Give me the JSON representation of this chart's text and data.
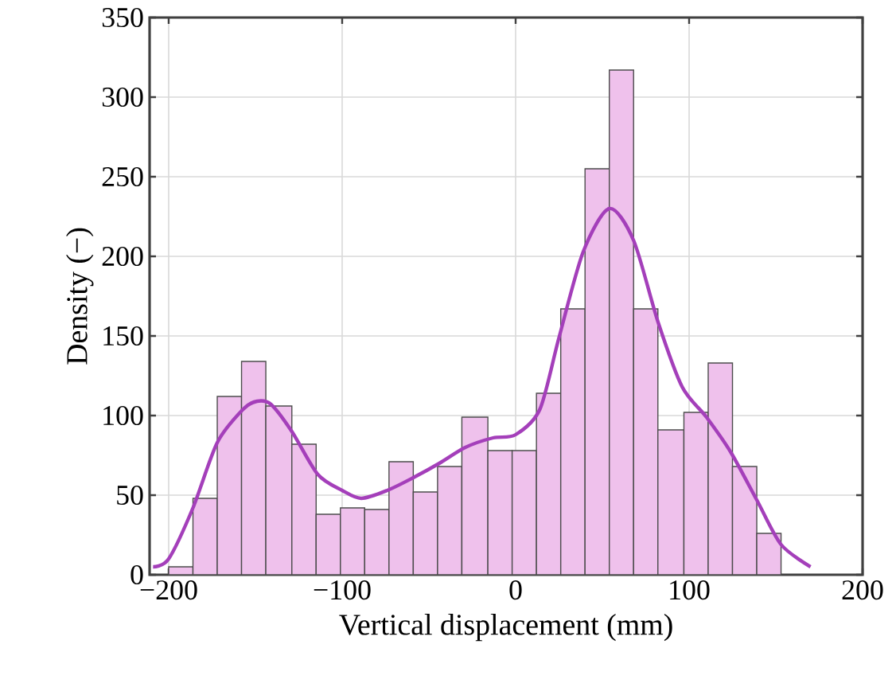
{
  "chart_data": {
    "type": "histogram",
    "xlabel": "Vertical displacement (mm)",
    "ylabel": "Density (−)",
    "bins": [
      -200,
      -186,
      -172,
      -158,
      -144,
      -129,
      -115,
      -101,
      -87,
      -73,
      -59,
      -45,
      -31,
      -16,
      -2,
      12,
      26,
      40,
      54,
      68,
      82,
      97,
      111,
      125,
      139,
      153
    ],
    "series": [
      {
        "type": "histogram",
        "color": "#efc1ec",
        "values": [
          5,
          48,
          112,
          134,
          106,
          82,
          38,
          42,
          41,
          71,
          52,
          68,
          99,
          78,
          78,
          114,
          167,
          255,
          317,
          167,
          91,
          102,
          133,
          68,
          26
        ]
      },
      {
        "type": "line",
        "color": "#a43fba",
        "x": [
          -209,
          -200,
          -186,
          -172,
          -157,
          -149,
          -141,
          -129,
          -114,
          -100,
          -89,
          -74,
          -59,
          -44,
          -29,
          -13,
          0,
          14,
          25,
          39,
          54,
          68,
          82,
          96,
          110,
          124,
          139,
          153,
          170
        ],
        "values": [
          5,
          10,
          42,
          83,
          104,
          109,
          107,
          90,
          63,
          53,
          48,
          53,
          61,
          70,
          80,
          86,
          88,
          104,
          149,
          203,
          230,
          210,
          159,
          118,
          99,
          77,
          47,
          19,
          5
        ]
      }
    ],
    "xlim": [
      -211,
      200
    ],
    "ylim": [
      0,
      350
    ],
    "xticks": [
      {
        "value": -200,
        "label": "−200"
      },
      {
        "value": -100,
        "label": "−100"
      },
      0,
      100,
      200
    ],
    "yticks": [
      0,
      50,
      100,
      150,
      200,
      250,
      300,
      350
    ],
    "grid": true
  }
}
